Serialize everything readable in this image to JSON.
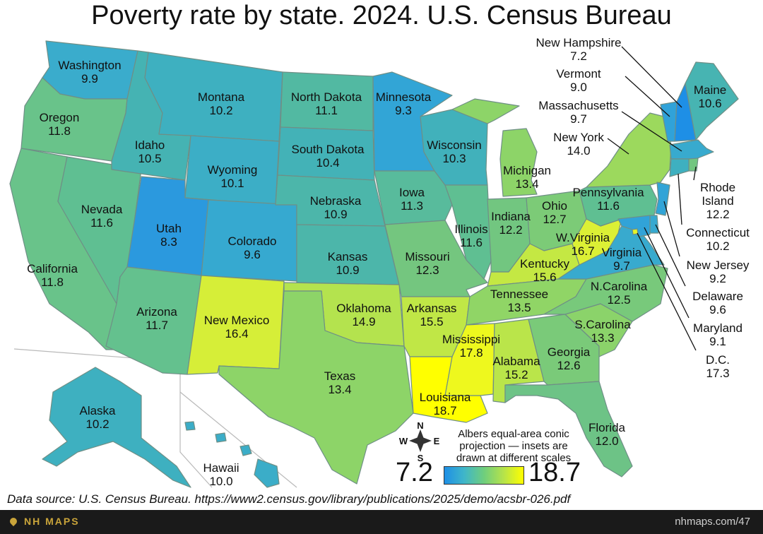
{
  "title": "Poverty rate by state. 2024. U.S. Census Bureau",
  "source": "Data source: U.S. Census Bureau. https://www2.census.gov/library/publications/2025/demo/acsbr-026.pdf",
  "footer": {
    "brand": "NH MAPS",
    "page_ref": "nhmaps.com/47"
  },
  "projection_note": [
    "Albers equal-area conic",
    "projection — insets are",
    "drawn at different scales"
  ],
  "compass": {
    "n": "N",
    "s": "S",
    "e": "E",
    "w": "W"
  },
  "legend": {
    "min": "7.2",
    "max": "18.7",
    "colors": [
      "#1e8fe6",
      "#3fb6c9",
      "#6fce7d",
      "#b6e34a",
      "#ffff00"
    ]
  },
  "states": {
    "wa": {
      "name": "Washington",
      "value": "9.9",
      "color": "#3aaccc"
    },
    "or": {
      "name": "Oregon",
      "value": "11.8",
      "color": "#69c38a"
    },
    "ca": {
      "name": "California",
      "value": "11.8",
      "color": "#69c38a"
    },
    "nv": {
      "name": "Nevada",
      "value": "11.6",
      "color": "#5fbf92"
    },
    "id": {
      "name": "Idaho",
      "value": "10.5",
      "color": "#45b3b3"
    },
    "mt": {
      "name": "Montana",
      "value": "10.2",
      "color": "#3eb0c0"
    },
    "wy": {
      "name": "Wyoming",
      "value": "10.1",
      "color": "#3caec6"
    },
    "ut": {
      "name": "Utah",
      "value": "8.3",
      "color": "#2b99de"
    },
    "az": {
      "name": "Arizona",
      "value": "11.7",
      "color": "#64c18e"
    },
    "co": {
      "name": "Colorado",
      "value": "9.6",
      "color": "#36a9d0"
    },
    "nm": {
      "name": "New Mexico",
      "value": "16.4",
      "color": "#d6ee38"
    },
    "nd": {
      "name": "North Dakota",
      "value": "11.1",
      "color": "#52b9a2"
    },
    "sd": {
      "name": "South Dakota",
      "value": "10.4",
      "color": "#43b2b7"
    },
    "ne": {
      "name": "Nebraska",
      "value": "10.9",
      "color": "#4cb6aa"
    },
    "ks": {
      "name": "Kansas",
      "value": "10.9",
      "color": "#4cb6aa"
    },
    "ok": {
      "name": "Oklahoma",
      "value": "14.9",
      "color": "#b4e34e"
    },
    "tx": {
      "name": "Texas",
      "value": "13.4",
      "color": "#8dd468"
    },
    "mn": {
      "name": "Minnesota",
      "value": "9.3",
      "color": "#32a5d6"
    },
    "ia": {
      "name": "Iowa",
      "value": "11.3",
      "color": "#58bb9c"
    },
    "mo": {
      "name": "Missouri",
      "value": "12.3",
      "color": "#74c67f"
    },
    "ar": {
      "name": "Arkansas",
      "value": "15.5",
      "color": "#c0e746"
    },
    "la": {
      "name": "Louisiana",
      "value": "18.7",
      "color": "#ffff00"
    },
    "wi": {
      "name": "Wisconsin",
      "value": "10.3",
      "color": "#41b1bb"
    },
    "il": {
      "name": "Illinois",
      "value": "11.6",
      "color": "#5fbf92"
    },
    "ms": {
      "name": "Mississippi",
      "value": "17.8",
      "color": "#eef81e"
    },
    "mi": {
      "name": "Michigan",
      "value": "13.4",
      "color": "#8dd468"
    },
    "in": {
      "name": "Indiana",
      "value": "12.2",
      "color": "#72c680"
    },
    "oh": {
      "name": "Ohio",
      "value": "12.7",
      "color": "#7ccb77"
    },
    "ky": {
      "name": "Kentucky",
      "value": "15.6",
      "color": "#c4e843"
    },
    "tn": {
      "name": "Tennessee",
      "value": "13.5",
      "color": "#90d566"
    },
    "al": {
      "name": "Alabama",
      "value": "15.2",
      "color": "#bae54a"
    },
    "ga": {
      "name": "Georgia",
      "value": "12.6",
      "color": "#7aca79"
    },
    "fl": {
      "name": "Florida",
      "value": "12.0",
      "color": "#6dc386"
    },
    "sc": {
      "name": "S.Carolina",
      "value": "13.3",
      "color": "#8bd36a"
    },
    "nc": {
      "name": "N.Carolina",
      "value": "12.5",
      "color": "#78c97b"
    },
    "va": {
      "name": "Virginia",
      "value": "9.7",
      "color": "#38aace"
    },
    "wv": {
      "name": "W.Virginia",
      "value": "16.7",
      "color": "#dcf035"
    },
    "pa": {
      "name": "Pennsylvania",
      "value": "11.6",
      "color": "#5fbf92"
    },
    "ny": {
      "name": "New York",
      "value": "14.0",
      "color": "#9cd95d"
    },
    "vt": {
      "name": "Vermont",
      "value": "9.0",
      "color": "#30a2d9"
    },
    "nh": {
      "name": "New Hampshire",
      "value": "7.2",
      "color": "#1e8fe6"
    },
    "me": {
      "name": "Maine",
      "value": "10.6",
      "color": "#47b4b2"
    },
    "ma": {
      "name": "Massachusetts",
      "value": "9.7",
      "color": "#38aace"
    },
    "ri": {
      "name": "Rhode Island",
      "value": "12.2",
      "color": "#72c680"
    },
    "ct": {
      "name": "Connecticut",
      "value": "10.2",
      "color": "#3eb0c0"
    },
    "nj": {
      "name": "New Jersey",
      "value": "9.2",
      "color": "#31a4d7"
    },
    "de": {
      "name": "Delaware",
      "value": "9.6",
      "color": "#36a9d0"
    },
    "md": {
      "name": "Maryland",
      "value": "9.1",
      "color": "#31a3d8"
    },
    "dc": {
      "name": "D.C.",
      "value": "17.3",
      "color": "#e6f428"
    },
    "ak": {
      "name": "Alaska",
      "value": "10.2",
      "color": "#3eb0c0"
    },
    "hi": {
      "name": "Hawaii",
      "value": "10.0",
      "color": "#3badc8"
    }
  },
  "ri_label_lines": [
    "Rhode",
    "Island"
  ]
}
